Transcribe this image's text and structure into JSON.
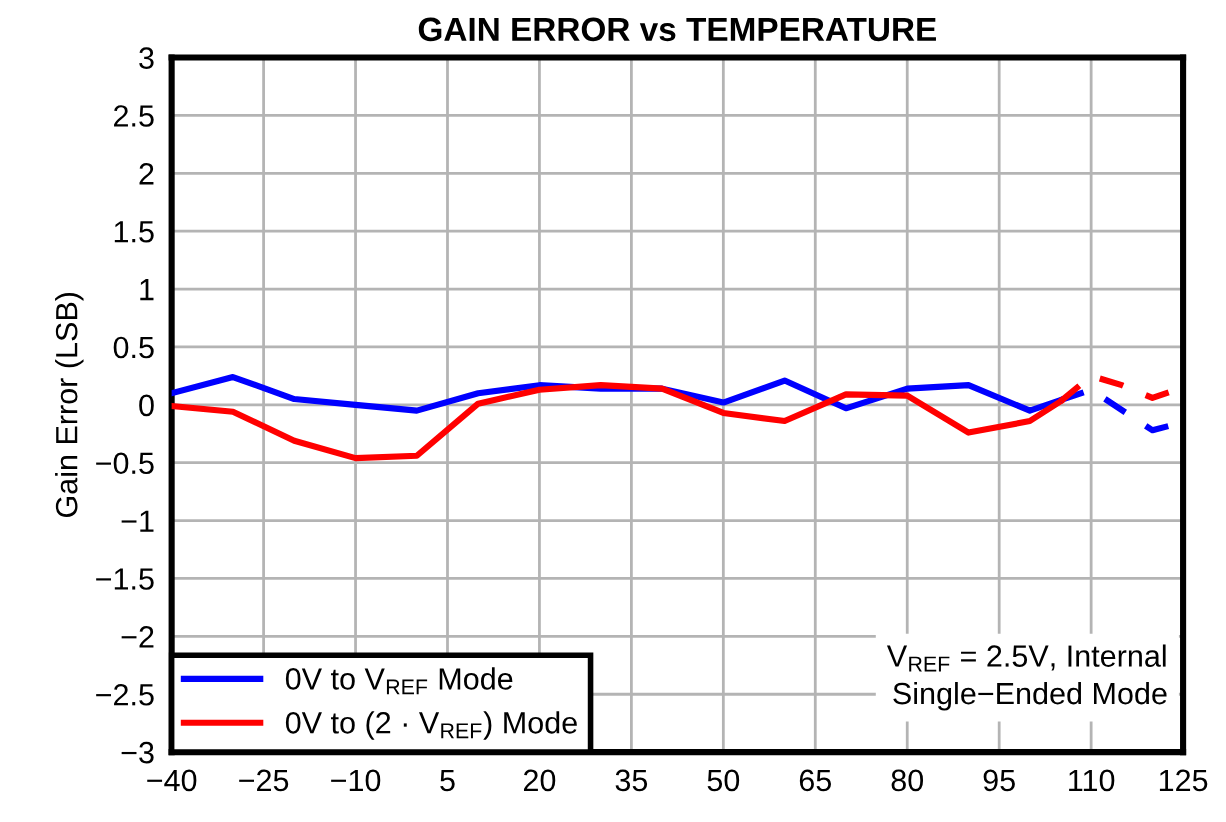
{
  "chart_data": {
    "type": "line",
    "title": "GAIN ERROR vs TEMPERATURE",
    "ylabel": "Gain Error (LSB)",
    "series": [
      {
        "name": "0V to V$_{REF}$ Mode",
        "color": "#0000ff",
        "line_style": "solid",
        "x": [
          -40,
          -30,
          -20,
          -10,
          0,
          10,
          20,
          30,
          40,
          50,
          60,
          70,
          80,
          90,
          100,
          105
        ],
        "values": [
          0.1,
          0.24,
          0.05,
          0.0,
          -0.05,
          0.1,
          0.17,
          0.14,
          0.14,
          0.02,
          0.21,
          -0.03,
          0.14,
          0.17,
          -0.05,
          0.04
        ]
      },
      {
        "name": "0V to (2 · V$_{REF}$) Mode",
        "color": "#ff0000",
        "line_style": "solid",
        "x": [
          -40,
          -30,
          -20,
          -10,
          0,
          10,
          20,
          30,
          40,
          50,
          60,
          70,
          80,
          90,
          100,
          105
        ],
        "values": [
          -0.01,
          -0.06,
          -0.31,
          -0.46,
          -0.44,
          0.01,
          0.13,
          0.17,
          0.14,
          -0.07,
          -0.14,
          0.09,
          0.08,
          -0.24,
          -0.14,
          0.03
        ]
      },
      {
        "color": "#0000ff",
        "line_style": "dashed",
        "x": [
          105,
          110,
          120,
          125
        ],
        "values": [
          0.04,
          0.13,
          -0.22,
          -0.15
        ]
      },
      {
        "color": "#ff0000",
        "line_style": "dashed",
        "x": [
          105,
          110,
          115,
          120,
          125
        ],
        "values": [
          0.03,
          0.25,
          0.17,
          0.06,
          0.15
        ]
      }
    ],
    "xlim": [
      -40,
      125
    ],
    "xticks": [
      -40,
      -25,
      -10,
      5,
      20,
      35,
      50,
      65,
      80,
      95,
      110,
      125
    ],
    "ylim": [
      -3,
      3
    ],
    "yticks": [
      -3,
      -2.5,
      -2,
      -1.5,
      -1,
      -0.5,
      0,
      0.5,
      1,
      1.5,
      2,
      2.5,
      3
    ],
    "grid": true,
    "legend": "bottom left",
    "annotations": [
      "V$_{REF}$ = 2.5V, Internal\nSingle−Ended Mode"
    ]
  }
}
